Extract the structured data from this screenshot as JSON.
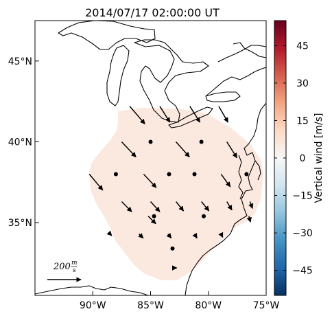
{
  "title": "2014/07/17 02:00:00 UT",
  "map": {
    "lon_range": [
      -95,
      -75
    ],
    "lat_range": [
      30.5,
      47.5
    ],
    "x_ticks": [
      {
        "value": -90,
        "label": "90°W"
      },
      {
        "value": -85,
        "label": "85°W"
      },
      {
        "value": -80,
        "label": "80°W"
      },
      {
        "value": -75,
        "label": "75°W"
      }
    ],
    "y_ticks": [
      {
        "value": 45,
        "label": "45°N"
      },
      {
        "value": 40,
        "label": "40°N"
      },
      {
        "value": 35,
        "label": "35°N"
      }
    ],
    "coverage_color": "#fbe8df",
    "coastline_color": "#000000"
  },
  "reference_vector": {
    "label_main": "200",
    "label_frac_top": "m",
    "label_frac_bottom": "s",
    "speed_mps": 200
  },
  "colorbar": {
    "label": "Vertical wind [m/s]",
    "range": [
      -55,
      55
    ],
    "colormap": "RdBu_r",
    "colormap_stops": [
      "#053061",
      "#2166ac",
      "#4393c3",
      "#92c5de",
      "#d1e5f0",
      "#f7f7f7",
      "#fddbc7",
      "#f4a582",
      "#d6604d",
      "#b2182b",
      "#67001f"
    ],
    "ticks": [
      {
        "value": 45,
        "label": "45"
      },
      {
        "value": 30,
        "label": "30"
      },
      {
        "value": 15,
        "label": "15"
      },
      {
        "value": 0,
        "label": "0"
      },
      {
        "value": -15,
        "label": "−15"
      },
      {
        "value": -30,
        "label": "−30"
      },
      {
        "value": -45,
        "label": "−45"
      }
    ]
  },
  "chart_data": {
    "type": "vector_field",
    "description_units": "horizontal wind vectors at grid points (lon, lat); u/v in m/s; dots mark near-zero speed",
    "vectors": [
      {
        "lon": -86.8,
        "lat": 42.2,
        "u": 90,
        "v": -105
      },
      {
        "lon": -84.2,
        "lat": 42.2,
        "u": 60,
        "v": -95
      },
      {
        "lon": -81.6,
        "lat": 42.2,
        "u": 60,
        "v": -95
      },
      {
        "lon": -79.1,
        "lat": 42.2,
        "u": 55,
        "v": -95
      },
      {
        "lon": -87.5,
        "lat": 40.0,
        "u": 85,
        "v": -90
      },
      {
        "lon": -85.0,
        "lat": 40.0,
        "u": 0,
        "v": 0
      },
      {
        "lon": -82.8,
        "lat": 40.0,
        "u": 80,
        "v": -90
      },
      {
        "lon": -80.6,
        "lat": 40.0,
        "u": 0,
        "v": 0
      },
      {
        "lon": -78.4,
        "lat": 40.0,
        "u": 60,
        "v": -95
      },
      {
        "lon": -90.3,
        "lat": 38.0,
        "u": 80,
        "v": -95
      },
      {
        "lon": -88.0,
        "lat": 38.0,
        "u": 0,
        "v": 0
      },
      {
        "lon": -85.6,
        "lat": 38.0,
        "u": 75,
        "v": -80
      },
      {
        "lon": -83.4,
        "lat": 38.0,
        "u": 0,
        "v": 0
      },
      {
        "lon": -81.2,
        "lat": 38.0,
        "u": 0,
        "v": 0
      },
      {
        "lon": -78.9,
        "lat": 38.0,
        "u": 55,
        "v": -75
      },
      {
        "lon": -76.7,
        "lat": 38.0,
        "u": 0,
        "v": 0
      },
      {
        "lon": -87.5,
        "lat": 36.3,
        "u": 60,
        "v": -60
      },
      {
        "lon": -85.0,
        "lat": 36.3,
        "u": 55,
        "v": -60
      },
      {
        "lon": -82.8,
        "lat": 36.3,
        "u": 45,
        "v": -55
      },
      {
        "lon": -80.6,
        "lat": 36.3,
        "u": 45,
        "v": -55
      },
      {
        "lon": -78.4,
        "lat": 36.3,
        "u": 30,
        "v": -50
      },
      {
        "lon": -76.4,
        "lat": 36.3,
        "u": 15,
        "v": -40
      },
      {
        "lon": -85.2,
        "lat": 35.4,
        "u": 45,
        "v": -45
      },
      {
        "lon": -84.7,
        "lat": 35.4,
        "u": 0,
        "v": 0
      },
      {
        "lon": -80.4,
        "lat": 35.4,
        "u": 0,
        "v": 0
      },
      {
        "lon": -76.5,
        "lat": 35.4,
        "u": 10,
        "v": -35
      },
      {
        "lon": -88.5,
        "lat": 34.3,
        "u": 10,
        "v": -10
      },
      {
        "lon": -86.0,
        "lat": 34.3,
        "u": 25,
        "v": -25
      },
      {
        "lon": -83.5,
        "lat": 34.3,
        "u": 20,
        "v": -25
      },
      {
        "lon": -81.2,
        "lat": 34.3,
        "u": 15,
        "v": -25
      },
      {
        "lon": -78.9,
        "lat": 34.3,
        "u": 10,
        "v": -20
      },
      {
        "lon": -83.1,
        "lat": 33.4,
        "u": 0,
        "v": 0
      },
      {
        "lon": -83.1,
        "lat": 32.2,
        "u": 25,
        "v": 0
      }
    ]
  }
}
